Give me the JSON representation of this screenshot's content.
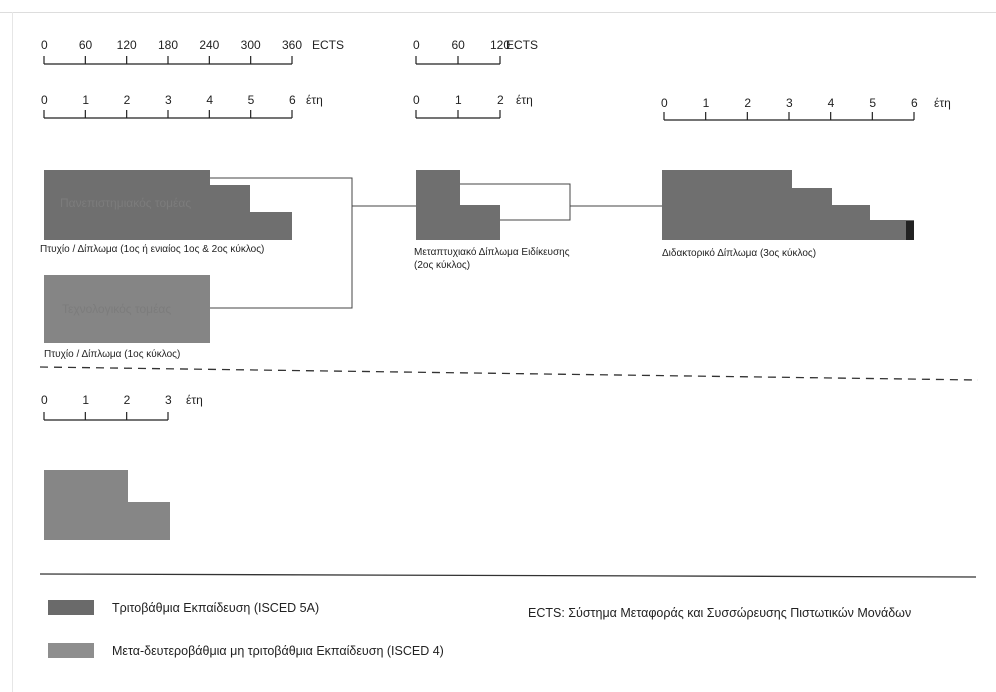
{
  "scales": {
    "ects_1": {
      "ticks": [
        "0",
        "60",
        "120",
        "180",
        "240",
        "300",
        "360"
      ],
      "unit": "ECTS"
    },
    "ects_2": {
      "ticks": [
        "0",
        "60",
        "120"
      ],
      "unit": "ECTS"
    },
    "years_1": {
      "ticks": [
        "0",
        "1",
        "2",
        "3",
        "4",
        "5",
        "6"
      ],
      "unit": "έτη"
    },
    "years_2": {
      "ticks": [
        "0",
        "1",
        "2"
      ],
      "unit": "έτη"
    },
    "years_3": {
      "ticks": [
        "0",
        "1",
        "2",
        "3",
        "4",
        "5",
        "6"
      ],
      "unit": "έτη"
    },
    "years_4": {
      "ticks": [
        "0",
        "1",
        "2",
        "3"
      ],
      "unit": "έτη"
    }
  },
  "blocks": {
    "university": {
      "label": "Πανεπιστημιακός τομέας",
      "caption": "Πτυχίο / Δίπλωμα (1ος ή ενιαίος 1ος & 2ος κύκλος)"
    },
    "technological": {
      "label": "Τεχνολογικός τομέας",
      "caption": "Πτυχίο / Δίπλωμα (1ος κύκλος)"
    },
    "masters": {
      "caption_line1": "Μεταπτυχιακό Δίπλωμα Ειδίκευσης",
      "caption_line2": "(2ος κύκλος)"
    },
    "doctorate": {
      "caption": "Διδακτορικό Δίπλωμα (3ος κύκλος)"
    }
  },
  "legend": {
    "tertiary": {
      "label": "Τριτοβάθμια Εκπαίδευση (ISCED 5A)",
      "color": "#6a6a6a"
    },
    "post_secondary": {
      "label": "Μετα-δευτεροβάθμια μη τριτοβάθμια Εκπαίδευση (ISCED 4)",
      "color": "#8e8e8e"
    },
    "ects_note": "ECTS: Σύστημα Μεταφοράς και Συσσώρευσης Πιστωτικών Μονάδων"
  }
}
